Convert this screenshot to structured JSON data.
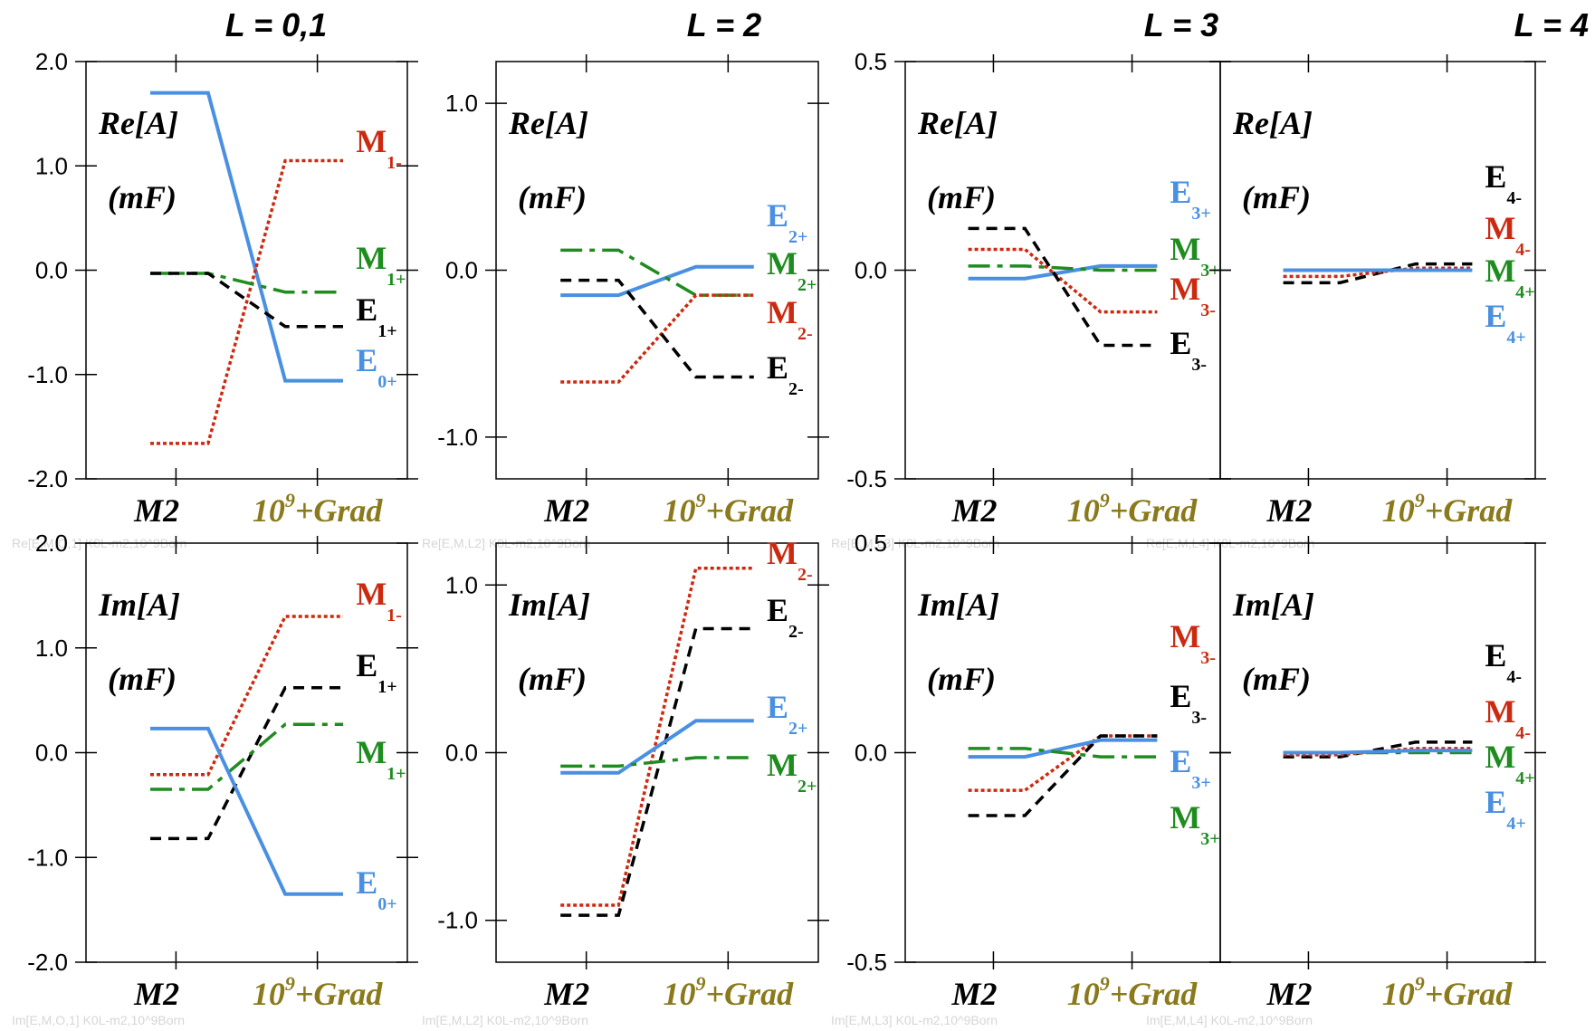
{
  "colors": {
    "E_plus": "#4a90e2",
    "M_minus": "#cc2a10",
    "M_plus": "#1f8c1f",
    "E_minus": "#000000",
    "grad_label": "#8a7a1c"
  },
  "column_titles": [
    "L = 0,1",
    "L = 2",
    "L = 3",
    "L = 4"
  ],
  "chart_data": [
    {
      "type": "line",
      "panel": "Re L=0,1",
      "categories": [
        "M2",
        "10^9+Grad"
      ],
      "label_top": "Re[A]",
      "label_unit": "(mF)",
      "ylim": [
        -2.0,
        2.0
      ],
      "yticks": [
        "2.0",
        "1.0",
        "0.0",
        "-1.0",
        "-2.0"
      ],
      "series": [
        {
          "name": "E0+",
          "main": "E",
          "sub": "0+",
          "style": "solid",
          "color": "#4a90e2",
          "values": [
            1.7,
            -1.06
          ]
        },
        {
          "name": "M1-",
          "main": "M",
          "sub": "1-",
          "style": "dot",
          "color": "#cc2a10",
          "values": [
            -1.66,
            1.05
          ]
        },
        {
          "name": "M1+",
          "main": "M",
          "sub": "1+",
          "style": "dashdot",
          "color": "#1f8c1f",
          "values": [
            -0.03,
            -0.21
          ]
        },
        {
          "name": "E1+",
          "main": "E",
          "sub": "1+",
          "style": "dash",
          "color": "#000000",
          "values": [
            -0.03,
            -0.54
          ]
        }
      ],
      "watermark": "Re[E,M,O,1] K0L-m2,10^9Born"
    },
    {
      "type": "line",
      "panel": "Re L=2",
      "categories": [
        "M2",
        "10^9+Grad"
      ],
      "label_top": "Re[A]",
      "label_unit": "(mF)",
      "ylim": [
        -1.25,
        1.25
      ],
      "yticks": [
        "1.0",
        "0.0",
        "-1.0"
      ],
      "series": [
        {
          "name": "E2+",
          "main": "E",
          "sub": "2+",
          "style": "solid",
          "color": "#4a90e2",
          "values": [
            -0.15,
            0.02
          ]
        },
        {
          "name": "M2+",
          "main": "M",
          "sub": "2+",
          "style": "dashdot",
          "color": "#1f8c1f",
          "values": [
            0.12,
            -0.15
          ]
        },
        {
          "name": "M2-",
          "main": "M",
          "sub": "2-",
          "style": "dot",
          "color": "#cc2a10",
          "values": [
            -0.67,
            -0.15
          ]
        },
        {
          "name": "E2-",
          "main": "E",
          "sub": "2-",
          "style": "dash",
          "color": "#000000",
          "values": [
            -0.06,
            -0.64
          ]
        }
      ],
      "watermark": "Re[E,M,L2] K0L-m2,10^9Born"
    },
    {
      "type": "line",
      "panel": "Re L=3",
      "categories": [
        "M2",
        "10^9+Grad"
      ],
      "label_top": "Re[A]",
      "label_unit": "(mF)",
      "ylim": [
        -0.5,
        0.5
      ],
      "yticks": [
        "0.5",
        "0.0",
        "-0.5"
      ],
      "series": [
        {
          "name": "E3+",
          "main": "E",
          "sub": "3+",
          "style": "solid",
          "color": "#4a90e2",
          "values": [
            -0.02,
            0.01
          ]
        },
        {
          "name": "M3+",
          "main": "M",
          "sub": "3+",
          "style": "dashdot",
          "color": "#1f8c1f",
          "values": [
            0.01,
            0.0
          ]
        },
        {
          "name": "M3-",
          "main": "M",
          "sub": "3-",
          "style": "dot",
          "color": "#cc2a10",
          "values": [
            0.05,
            -0.1
          ]
        },
        {
          "name": "E3-",
          "main": "E",
          "sub": "3-",
          "style": "dash",
          "color": "#000000",
          "values": [
            0.1,
            -0.18
          ]
        }
      ],
      "watermark": "Re[E,M,L3] K0L-m2,10^9Born"
    },
    {
      "type": "line",
      "panel": "Re L=4",
      "categories": [
        "M2",
        "10^9+Grad"
      ],
      "label_top": "Re[A]",
      "label_unit": "(mF)",
      "ylim": [
        -0.5,
        0.5
      ],
      "yticks": [],
      "series": [
        {
          "name": "E4-",
          "main": "E",
          "sub": "4-",
          "style": "dash",
          "color": "#000000",
          "values": [
            -0.03,
            0.015
          ]
        },
        {
          "name": "M4-",
          "main": "M",
          "sub": "4-",
          "style": "dot",
          "color": "#cc2a10",
          "values": [
            -0.015,
            0.005
          ]
        },
        {
          "name": "M4+",
          "main": "M",
          "sub": "4+",
          "style": "dashdot",
          "color": "#1f8c1f",
          "values": [
            0.0,
            0.0
          ]
        },
        {
          "name": "E4+",
          "main": "E",
          "sub": "4+",
          "style": "solid",
          "color": "#4a90e2",
          "values": [
            0.0,
            0.0
          ]
        }
      ],
      "watermark": "Re[E,M,L4] K0L-m2,10^9Born"
    },
    {
      "type": "line",
      "panel": "Im L=0,1",
      "categories": [
        "M2",
        "10^9+Grad"
      ],
      "label_top": "Im[A]",
      "label_unit": "(mF)",
      "ylim": [
        -2.0,
        2.0
      ],
      "yticks": [
        "2.0",
        "1.0",
        "0.0",
        "-1.0",
        "-2.0"
      ],
      "series": [
        {
          "name": "M1-",
          "main": "M",
          "sub": "1-",
          "style": "dot",
          "color": "#cc2a10",
          "values": [
            -0.21,
            1.3
          ]
        },
        {
          "name": "E1+",
          "main": "E",
          "sub": "1+",
          "style": "dash",
          "color": "#000000",
          "values": [
            -0.82,
            0.62
          ]
        },
        {
          "name": "M1+",
          "main": "M",
          "sub": "1+",
          "style": "dashdot",
          "color": "#1f8c1f",
          "values": [
            -0.35,
            0.27
          ]
        },
        {
          "name": "E0+",
          "main": "E",
          "sub": "0+",
          "style": "solid",
          "color": "#4a90e2",
          "values": [
            0.23,
            -1.35
          ]
        }
      ],
      "watermark": "Im[E,M,O,1] K0L-m2,10^9Born"
    },
    {
      "type": "line",
      "panel": "Im L=2",
      "categories": [
        "M2",
        "10^9+Grad"
      ],
      "label_top": "Im[A]",
      "label_unit": "(mF)",
      "ylim": [
        -1.25,
        1.25
      ],
      "yticks": [
        "1.0",
        "0.0",
        "-1.0"
      ],
      "series": [
        {
          "name": "M2-",
          "main": "M",
          "sub": "2-",
          "style": "dot",
          "color": "#cc2a10",
          "values": [
            -0.91,
            1.1
          ]
        },
        {
          "name": "E2-",
          "main": "E",
          "sub": "2-",
          "style": "dash",
          "color": "#000000",
          "values": [
            -0.97,
            0.74
          ]
        },
        {
          "name": "E2+",
          "main": "E",
          "sub": "2+",
          "style": "solid",
          "color": "#4a90e2",
          "values": [
            -0.12,
            0.19
          ]
        },
        {
          "name": "M2+",
          "main": "M",
          "sub": "2+",
          "style": "dashdot",
          "color": "#1f8c1f",
          "values": [
            -0.08,
            -0.03
          ]
        }
      ],
      "watermark": "Im[E,M,L2] K0L-m2,10^9Born"
    },
    {
      "type": "line",
      "panel": "Im L=3",
      "categories": [
        "M2",
        "10^9+Grad"
      ],
      "label_top": "Im[A]",
      "label_unit": "(mF)",
      "ylim": [
        -0.5,
        0.5
      ],
      "yticks": [
        "0.5",
        "0.0",
        "-0.5"
      ],
      "series": [
        {
          "name": "M3-",
          "main": "M",
          "sub": "3-",
          "style": "dot",
          "color": "#cc2a10",
          "values": [
            -0.09,
            0.04
          ]
        },
        {
          "name": "E3-",
          "main": "E",
          "sub": "3-",
          "style": "dash",
          "color": "#000000",
          "values": [
            -0.15,
            0.04
          ]
        },
        {
          "name": "E3+",
          "main": "E",
          "sub": "3+",
          "style": "solid",
          "color": "#4a90e2",
          "values": [
            -0.01,
            0.03
          ]
        },
        {
          "name": "M3+",
          "main": "M",
          "sub": "3+",
          "style": "dashdot",
          "color": "#1f8c1f",
          "values": [
            0.01,
            -0.01
          ]
        }
      ],
      "watermark": "Im[E,M,L3] K0L-m2,10^9Born"
    },
    {
      "type": "line",
      "panel": "Im L=4",
      "categories": [
        "M2",
        "10^9+Grad"
      ],
      "label_top": "Im[A]",
      "label_unit": "(mF)",
      "ylim": [
        -0.5,
        0.5
      ],
      "yticks": [],
      "series": [
        {
          "name": "E4-",
          "main": "E",
          "sub": "4-",
          "style": "dash",
          "color": "#000000",
          "values": [
            -0.01,
            0.025
          ]
        },
        {
          "name": "M4-",
          "main": "M",
          "sub": "4-",
          "style": "dot",
          "color": "#cc2a10",
          "values": [
            -0.005,
            0.01
          ]
        },
        {
          "name": "M4+",
          "main": "M",
          "sub": "4+",
          "style": "dashdot",
          "color": "#1f8c1f",
          "values": [
            0.0,
            0.0
          ]
        },
        {
          "name": "E4+",
          "main": "E",
          "sub": "4+",
          "style": "solid",
          "color": "#4a90e2",
          "values": [
            0.0,
            0.005
          ]
        }
      ],
      "watermark": "Im[E,M,L4] K0L-m2,10^9Born"
    }
  ]
}
